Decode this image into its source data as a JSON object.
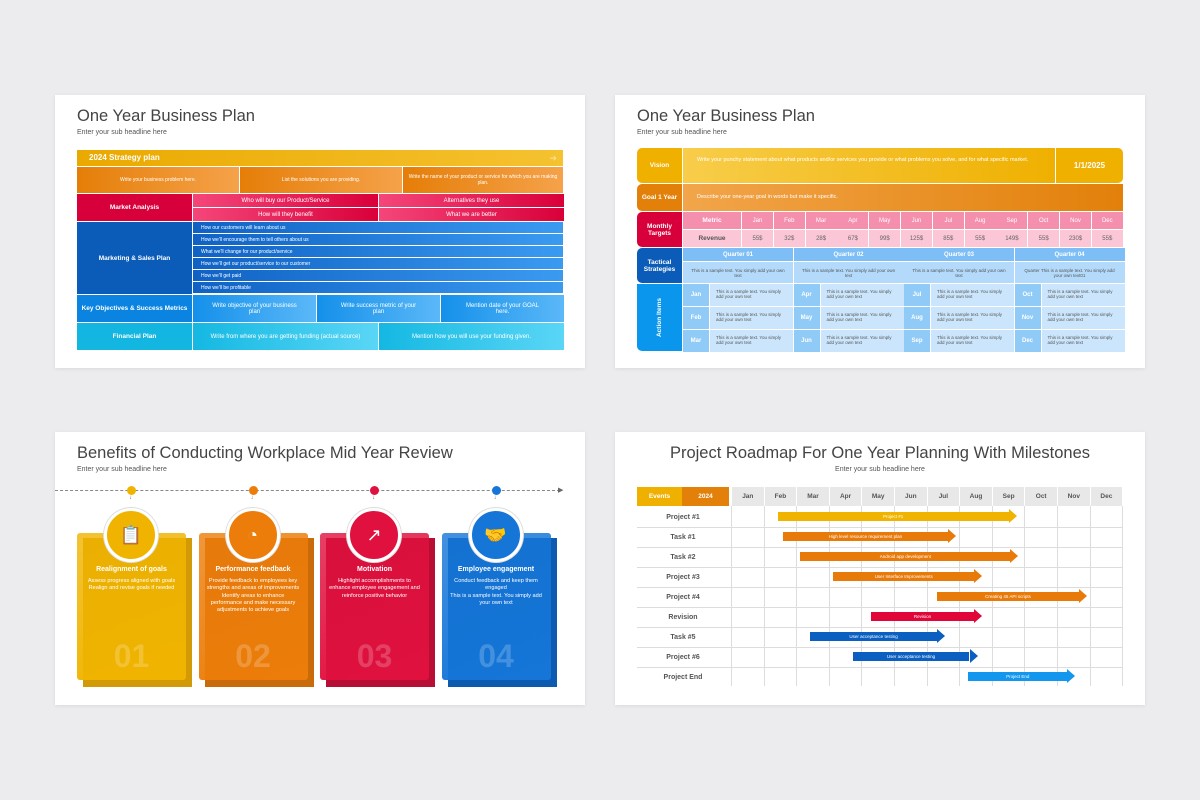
{
  "slide1": {
    "title": "One Year Business Plan",
    "subtitle": "Enter your sub headline here",
    "strategy": "2024 Strategy plan",
    "row_top": [
      "Write your business problem here.",
      "List the solutions you are providing.",
      "Write the name of your product or service for which you are making plan."
    ],
    "market": {
      "label": "Market Analysis",
      "cells": [
        "Who will buy our Product/Service",
        "Alternatives they use",
        "How will they benefit",
        "What we are better"
      ]
    },
    "marketing": {
      "label": "Marketing & Sales Plan",
      "items": [
        "How our customers will learn about us",
        "How we'll encourage them to tell others about us",
        "What we'll change for our product/service",
        "How we'll get our product/service to our customer",
        "How we'll get paid",
        "How we'll be profitable"
      ]
    },
    "objectives": {
      "label": "Key Objectives & Success Metrics",
      "cells": [
        "Write objective of your business plan",
        "Write success metric of your plan",
        "Mention date of your GOAL here."
      ]
    },
    "financial": {
      "label": "Financial Plan",
      "cells": [
        "Write from where you are getting funding (actual source)",
        "Mention how you will use your funding given."
      ]
    }
  },
  "slide2": {
    "title": "One Year Business Plan",
    "subtitle": "Enter your sub headline here",
    "vision": {
      "label": "Vision",
      "text": "Write your punchy statement about what products and/or services you provide or what problems you solve, and for what specific market.",
      "date": "1/1/2025"
    },
    "goal": {
      "label": "Goal 1 Year",
      "text": "Describe your one-year goal in words but make it specific."
    },
    "monthly": {
      "label": "Monthly Targets",
      "metric": "Metric",
      "revenue_label": "Revenue",
      "months": [
        "Jan",
        "Feb",
        "Mar",
        "Apr",
        "May",
        "Jun",
        "Jul",
        "Aug",
        "Sep",
        "Oct",
        "Nov",
        "Dec"
      ],
      "revenue": [
        "55$",
        "32$",
        "28$",
        "67$",
        "99$",
        "125$",
        "85$",
        "55$",
        "149$",
        "55$",
        "230$",
        "55$"
      ]
    },
    "tactical": {
      "label": "Tactical Strategies",
      "quarters": [
        "Quarter 01",
        "Quarter 02",
        "Quarter 03",
        "Quarter 04"
      ],
      "texts": [
        "This is a sample text. You simply add your own text",
        "This is a sample text. You simply add your own text",
        "This is a sample text. You simply add your own text",
        "Quarter This is a sample text. You simply add your own text01"
      ]
    },
    "action": {
      "label": "Action Items",
      "months": [
        "Jan",
        "Feb",
        "Mar",
        "Apr",
        "May",
        "Jun",
        "Jul",
        "Aug",
        "Sep",
        "Oct",
        "Nov",
        "Dec"
      ],
      "text": "This is a sample text. You simply add your own text"
    }
  },
  "slide3": {
    "title": "Benefits of Conducting Workplace Mid Year Review",
    "subtitle": "Enter your sub headline here",
    "cards": [
      {
        "icon": "target-clipboard-icon",
        "title": "Realignment of goals",
        "text": "Assess progress aligned with goals\nRealign and revise goals if needed",
        "num": "01",
        "color": "#f0b400",
        "dark": "#d19a06"
      },
      {
        "icon": "speedometer-person-icon",
        "title": "Performance feedback",
        "text": "Provide feedback to employees key strengths and areas of improvements\nIdentify areas to enhance performance and make necessary adjustments to achieve goals",
        "num": "02",
        "color": "#ec7d0a",
        "dark": "#c96a0b"
      },
      {
        "icon": "rising-arrows-icon",
        "title": "Motivation",
        "text": "Highlight accomplishments to enhance employee engagement and reinforce positive behavior",
        "num": "03",
        "color": "#e0113e",
        "dark": "#b80d34"
      },
      {
        "icon": "handshake-team-icon",
        "title": "Employee engagement",
        "text": "Conduct feedback and keep them engaged\nThis is a sample text. You simply add your own text",
        "num": "04",
        "color": "#1576d8",
        "dark": "#0d5bb0"
      }
    ]
  },
  "slide4": {
    "title": "Project Roadmap For One Year Planning With Milestones",
    "subtitle": "Enter your sub headline here",
    "events_label": "Events",
    "year": "2024",
    "months": [
      "Jan",
      "Feb",
      "Mar",
      "Apr",
      "May",
      "Jun",
      "Jul",
      "Aug",
      "Sep",
      "Oct",
      "Nov",
      "Dec"
    ],
    "rows": [
      {
        "label": "Project #1",
        "bar": "Project #1",
        "start": 1.4,
        "end": 8.7,
        "color": "#f0b400"
      },
      {
        "label": "Task #1",
        "bar": "High level resource requirement plan",
        "start": 1.55,
        "end": 6.85,
        "color": "#e87a0a"
      },
      {
        "label": "Task #2",
        "bar": "Android app development",
        "start": 2.1,
        "end": 8.75,
        "color": "#e87a0a"
      },
      {
        "label": "Project #3",
        "bar": "User Interface Improvements",
        "start": 3.1,
        "end": 7.65,
        "color": "#e87a0a"
      },
      {
        "label": "Project #4",
        "bar": "Creating 45 API scripts",
        "start": 6.3,
        "end": 10.85,
        "color": "#e87a0a"
      },
      {
        "label": "Revision",
        "bar": "Revision",
        "start": 4.25,
        "end": 7.65,
        "color": "#e0063a"
      },
      {
        "label": "Task #5",
        "bar": "User acceptance testing",
        "start": 2.4,
        "end": 6.5,
        "color": "#0a5fc0"
      },
      {
        "label": "Project #6",
        "bar": "User acceptance testing",
        "start": 3.7,
        "end": 7.5,
        "color": "#0a5fc0"
      },
      {
        "label": "Project End",
        "bar": "Project End",
        "start": 7.25,
        "end": 10.5,
        "color": "#1296ee"
      }
    ]
  }
}
